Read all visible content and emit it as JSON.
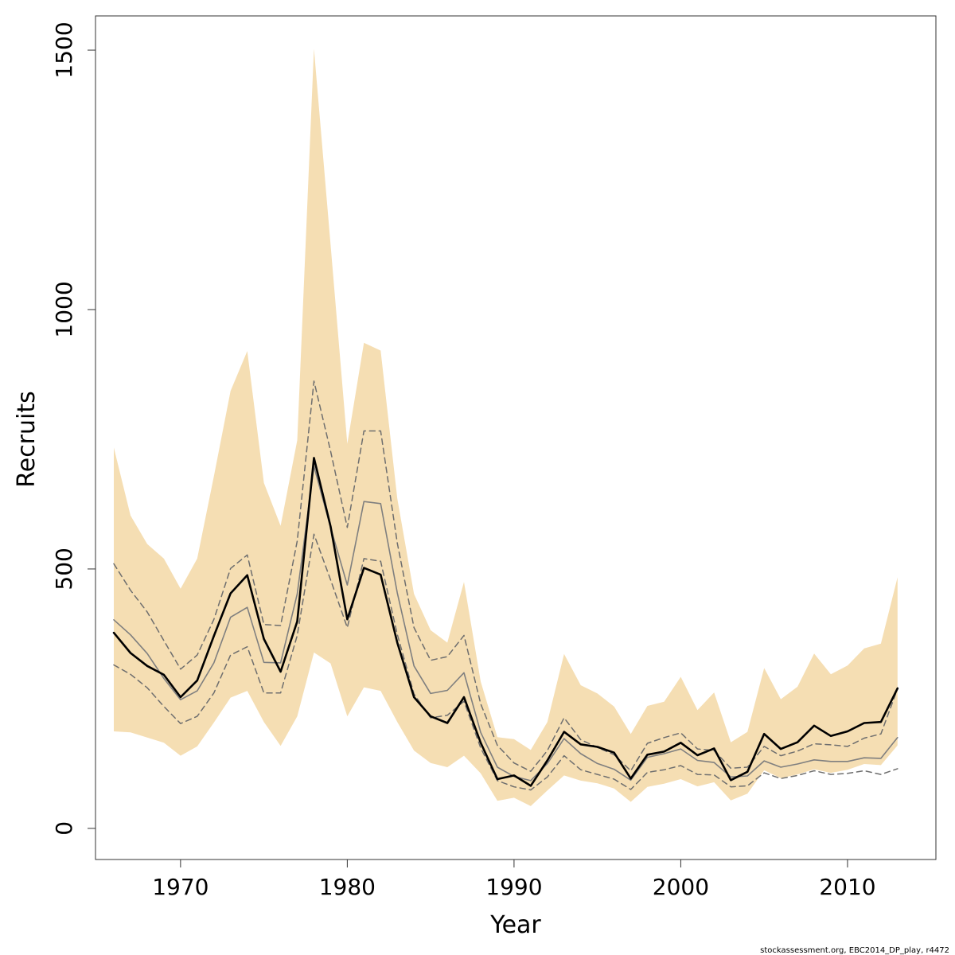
{
  "chart_data": {
    "type": "line",
    "xlabel": "Year",
    "ylabel": "Recruits",
    "xlim": [
      1964.9,
      2015.3
    ],
    "ylim": [
      -60,
      1566
    ],
    "x_ticks": [
      1970,
      1980,
      1990,
      2000,
      2010
    ],
    "y_ticks": [
      0,
      500,
      1000,
      1500
    ],
    "x_tick_labels": [
      "1970",
      "1980",
      "1990",
      "2000",
      "2010"
    ],
    "y_tick_labels": [
      "0",
      "500",
      "1000",
      "1500"
    ],
    "grid": false,
    "legend": "none",
    "colors": {
      "band": "#f5deb3",
      "estimate": "#000000",
      "median": "#7f7f7f",
      "quantiles": "#6e6e6e"
    },
    "x": [
      1966,
      1967,
      1968,
      1969,
      1970,
      1971,
      1972,
      1973,
      1974,
      1975,
      1976,
      1977,
      1978,
      1979,
      1980,
      1981,
      1982,
      1983,
      1984,
      1985,
      1986,
      1987,
      1988,
      1989,
      1990,
      1991,
      1992,
      1993,
      1994,
      1995,
      1996,
      1997,
      1998,
      1999,
      2000,
      2001,
      2002,
      2003,
      2004,
      2005,
      2006,
      2007,
      2008,
      2009,
      2010,
      2011,
      2012,
      2013
    ],
    "series": [
      {
        "role": "band",
        "upper": [
          734,
          603,
          548,
          520,
          462,
          520,
          679,
          843,
          920,
          666,
          583,
          748,
          1503,
          1125,
          741,
          936,
          921,
          636,
          452,
          382,
          358,
          475,
          283,
          176,
          172,
          151,
          205,
          336,
          276,
          260,
          235,
          182,
          236,
          244,
          292,
          228,
          262,
          166,
          186,
          309,
          249,
          273,
          337,
          297,
          314,
          347,
          356,
          484
        ],
        "lower": [
          187,
          185,
          175,
          165,
          140,
          158,
          204,
          252,
          265,
          205,
          159,
          216,
          339,
          318,
          216,
          272,
          265,
          205,
          150,
          126,
          118,
          140,
          106,
          53,
          59,
          43,
          73,
          102,
          92,
          87,
          77,
          51,
          80,
          86,
          95,
          81,
          89,
          54,
          67,
          112,
          97,
          104,
          114,
          107,
          113,
          124,
          122,
          160
        ]
      },
      {
        "role": "estimate",
        "values": [
          377,
          338,
          313,
          296,
          253,
          285,
          371,
          453,
          488,
          365,
          302,
          399,
          714,
          582,
          403,
          502,
          489,
          358,
          253,
          216,
          203,
          253,
          165,
          95,
          102,
          82,
          131,
          186,
          162,
          157,
          146,
          96,
          142,
          148,
          165,
          141,
          154,
          93,
          109,
          182,
          153,
          166,
          198,
          178,
          187,
          203,
          205,
          270
        ]
      },
      {
        "role": "median",
        "values": [
          402,
          373,
          337,
          289,
          248,
          265,
          319,
          407,
          426,
          320,
          319,
          452,
          698,
          580,
          469,
          630,
          626,
          454,
          313,
          260,
          266,
          300,
          185,
          118,
          100,
          92,
          125,
          173,
          144,
          125,
          114,
          93,
          137,
          144,
          153,
          131,
          127,
          99,
          101,
          130,
          118,
          124,
          132,
          129,
          129,
          136,
          135,
          175
        ]
      },
      {
        "role": "upper-quantile",
        "values": [
          510,
          459,
          417,
          362,
          307,
          334,
          403,
          501,
          527,
          393,
          391,
          554,
          862,
          727,
          580,
          766,
          766,
          550,
          387,
          324,
          331,
          372,
          240,
          160,
          126,
          110,
          150,
          213,
          171,
          156,
          142,
          111,
          164,
          175,
          184,
          153,
          150,
          116,
          118,
          158,
          140,
          149,
          163,
          161,
          158,
          174,
          182,
          269
        ]
      },
      {
        "role": "lower-quantile",
        "values": [
          315,
          297,
          271,
          235,
          202,
          216,
          261,
          334,
          350,
          261,
          261,
          372,
          567,
          479,
          387,
          520,
          515,
          374,
          259,
          213,
          218,
          245,
          155,
          92,
          80,
          74,
          99,
          140,
          113,
          104,
          95,
          75,
          108,
          113,
          121,
          104,
          103,
          80,
          82,
          107,
          96,
          102,
          111,
          104,
          106,
          111,
          104,
          115
        ]
      }
    ]
  },
  "footer_text": "stockassessment.org, EBC2014_DP_play, r4472"
}
